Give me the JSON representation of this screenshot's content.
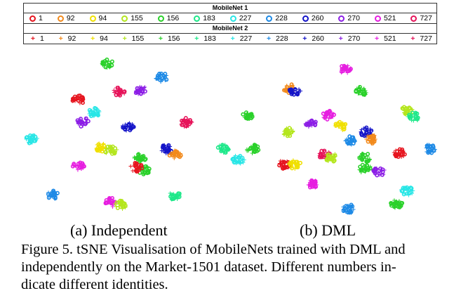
{
  "legend": {
    "mobilenet1_title": "MobileNet 1",
    "mobilenet2_title": "MobileNet 2",
    "ids": [
      {
        "label": "1",
        "color": "#e6141e"
      },
      {
        "label": "92",
        "color": "#f28a1c"
      },
      {
        "label": "94",
        "color": "#f0e000"
      },
      {
        "label": "155",
        "color": "#b4e61e"
      },
      {
        "label": "156",
        "color": "#2ad12a"
      },
      {
        "label": "183",
        "color": "#1ee88a"
      },
      {
        "label": "227",
        "color": "#28e6e6"
      },
      {
        "label": "228",
        "color": "#1e8ae6"
      },
      {
        "label": "260",
        "color": "#1414c8"
      },
      {
        "label": "270",
        "color": "#8c1ee6"
      },
      {
        "label": "521",
        "color": "#e61ee0"
      },
      {
        "label": "727",
        "color": "#e6145a"
      }
    ]
  },
  "subfigures": {
    "a_label": "(a) Independent",
    "b_label": "(b) DML"
  },
  "caption": {
    "line1": "Figure 5. tSNE Visualisation of MobileNets trained with DML and",
    "line2": "independently on the Market-1501 dataset. Different numbers in-",
    "line3": "dicate different identities."
  }
}
